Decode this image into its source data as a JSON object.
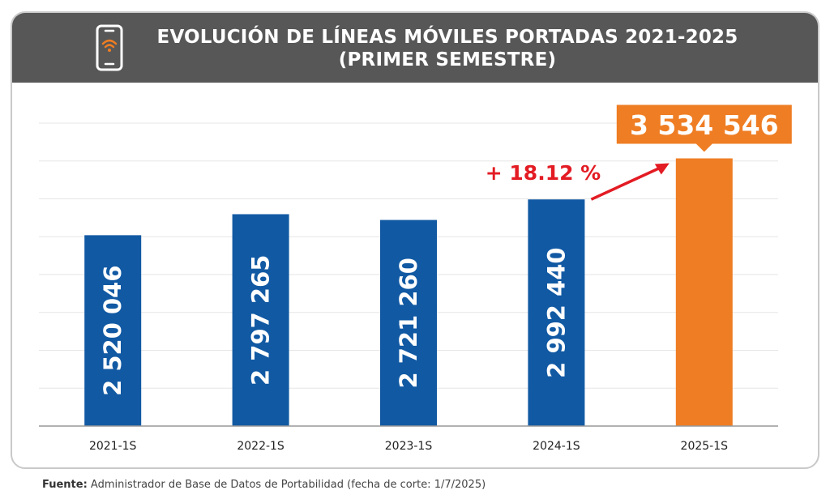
{
  "header": {
    "title_line1": "EVOLUCIÓN DE LÍNEAS MÓVILES PORTADAS 2021-2025",
    "title_line2": "(PRIMER SEMESTRE)",
    "icon": "smartphone-wifi-icon"
  },
  "chart_data": {
    "type": "bar",
    "categories": [
      "2021-1S",
      "2022-1S",
      "2023-1S",
      "2024-1S",
      "2025-1S"
    ],
    "values": [
      2520046,
      2797265,
      2721260,
      2992440,
      3534546
    ],
    "value_labels": [
      "2 520 046",
      "2 797 265",
      "2 721 260",
      "2 992 440",
      "3 534 546"
    ],
    "ylim": [
      0,
      4000000
    ],
    "grid": true,
    "highlight_index": 4,
    "growth_annotation": "+ 18.12 %",
    "colors": {
      "bar": "#1159a3",
      "highlight": "#ef7d23",
      "annotation": "#e31b23",
      "grid": "#e6e6e6",
      "axis": "#999999"
    }
  },
  "footer": {
    "source_label": "Fuente:",
    "source_text": " Administrador de Base de Datos de Portabilidad (fecha de corte: 1/7/2025)"
  }
}
